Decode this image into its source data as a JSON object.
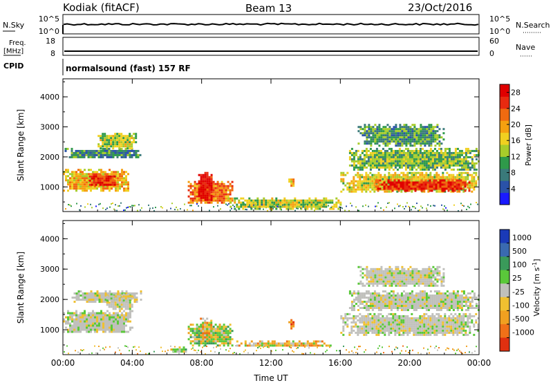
{
  "header": {
    "station": "Kodiak (fitACF)",
    "beam": "Beam 13",
    "date": "23/Oct/2016"
  },
  "strip_panels": {
    "nsky": {
      "left_label": "N.Sky",
      "left_ticks": [
        "10^5",
        "10^0"
      ],
      "right_label": "N.Search",
      "right_ticks": [
        "10^5",
        "10^0"
      ]
    },
    "freq": {
      "left_label_top": "Freq.",
      "left_label_bottom": "[MHz]",
      "left_ticks": [
        "18",
        "8"
      ],
      "right_label": "Nave",
      "right_ticks": [
        "60",
        "0"
      ]
    },
    "cpid": {
      "label": "CPID",
      "program": "normalsound (fast) 157 RF"
    }
  },
  "chart_data": [
    {
      "type": "heatmap",
      "name": "power",
      "ylabel": "Slant Range [km]",
      "xlabel": "",
      "x_ticks": [
        "00:00",
        "04:00",
        "08:00",
        "12:00",
        "16:00",
        "20:00",
        "00:00"
      ],
      "y_ticks": [
        "1000",
        "2000",
        "3000",
        "4000"
      ],
      "xlim_hours": [
        0,
        24
      ],
      "ylim_km": [
        180,
        4600
      ],
      "colorbar": {
        "label": "Power [dB]",
        "ticks": [
          "4",
          "8",
          "12",
          "16",
          "20",
          "24",
          "28"
        ],
        "range": [
          0,
          30
        ],
        "colors": [
          "#1a1aff",
          "#2a52a8",
          "#3a7a7a",
          "#2f9a4a",
          "#a8cc2a",
          "#f0d020",
          "#f5a010",
          "#f06a10",
          "#e82a10",
          "#e00000"
        ]
      },
      "echo_regions": [
        {
          "t0": 0.0,
          "t1": 3.8,
          "r0": 900,
          "r1": 1600,
          "level": 18
        },
        {
          "t0": 1.5,
          "t1": 3.0,
          "r0": 1050,
          "r1": 1450,
          "level": 26
        },
        {
          "t0": 0.1,
          "t1": 4.5,
          "r0": 2000,
          "r1": 2300,
          "level": 8
        },
        {
          "t0": 2.0,
          "t1": 4.2,
          "r0": 2300,
          "r1": 2800,
          "level": 14
        },
        {
          "t0": 7.2,
          "t1": 9.8,
          "r0": 450,
          "r1": 1200,
          "level": 22
        },
        {
          "t0": 7.8,
          "t1": 8.6,
          "r0": 550,
          "r1": 1500,
          "level": 28
        },
        {
          "t0": 9.5,
          "t1": 16.0,
          "r0": 300,
          "r1": 650,
          "level": 14
        },
        {
          "t0": 16.0,
          "t1": 24.0,
          "r0": 850,
          "r1": 1500,
          "level": 16
        },
        {
          "t0": 18.0,
          "t1": 23.5,
          "r0": 900,
          "r1": 1250,
          "level": 26
        },
        {
          "t0": 16.5,
          "t1": 24.0,
          "r0": 1600,
          "r1": 2300,
          "level": 12
        },
        {
          "t0": 17.0,
          "t1": 22.0,
          "r0": 2400,
          "r1": 3100,
          "level": 10
        },
        {
          "t0": 13.0,
          "t1": 13.3,
          "r0": 1050,
          "r1": 1350,
          "level": 18
        }
      ]
    },
    {
      "type": "heatmap",
      "name": "velocity",
      "ylabel": "Slant Range [km]",
      "xlabel": "Time UT",
      "x_ticks": [
        "00:00",
        "04:00",
        "08:00",
        "12:00",
        "16:00",
        "20:00",
        "00:00"
      ],
      "y_ticks": [
        "1000",
        "2000",
        "3000",
        "4000"
      ],
      "xlim_hours": [
        0,
        24
      ],
      "ylim_km": [
        180,
        4600
      ],
      "colorbar": {
        "label": "Velocity [m s^-1]",
        "ticks": [
          "1000",
          "500",
          "100",
          "25",
          "-25",
          "-100",
          "-500",
          "-1000"
        ],
        "colors": [
          "#1a3ab8",
          "#3a6ab0",
          "#3a9a5a",
          "#5ac83a",
          "#c0c0bc",
          "#f0c030",
          "#f0a020",
          "#f07018",
          "#e03010"
        ]
      },
      "echo_regions": [
        {
          "t0": 0.0,
          "t1": 4.0,
          "r0": 900,
          "r1": 1650,
          "class": "ground"
        },
        {
          "t0": 0.5,
          "t1": 4.5,
          "r0": 1950,
          "r1": 2300,
          "class": "ground"
        },
        {
          "t0": 2.5,
          "t1": 4.0,
          "r0": 1700,
          "r1": 2200,
          "class": "ground"
        },
        {
          "t0": 7.2,
          "t1": 9.8,
          "r0": 500,
          "r1": 1200,
          "class": "slow_pos"
        },
        {
          "t0": 7.9,
          "t1": 8.6,
          "r0": 700,
          "r1": 1400,
          "class": "slow_neg"
        },
        {
          "t0": 10.0,
          "t1": 15.5,
          "r0": 450,
          "r1": 650,
          "class": "slow_neg"
        },
        {
          "t0": 13.0,
          "t1": 13.3,
          "r0": 1050,
          "r1": 1350,
          "class": "fast_neg"
        },
        {
          "t0": 16.0,
          "t1": 24.0,
          "r0": 850,
          "r1": 1550,
          "class": "ground"
        },
        {
          "t0": 16.5,
          "t1": 24.0,
          "r0": 1650,
          "r1": 2300,
          "class": "ground"
        },
        {
          "t0": 17.0,
          "t1": 22.0,
          "r0": 2450,
          "r1": 3100,
          "class": "ground"
        },
        {
          "t0": 6.2,
          "t1": 7.2,
          "r0": 250,
          "r1": 450,
          "class": "slow_pos"
        }
      ]
    }
  ]
}
